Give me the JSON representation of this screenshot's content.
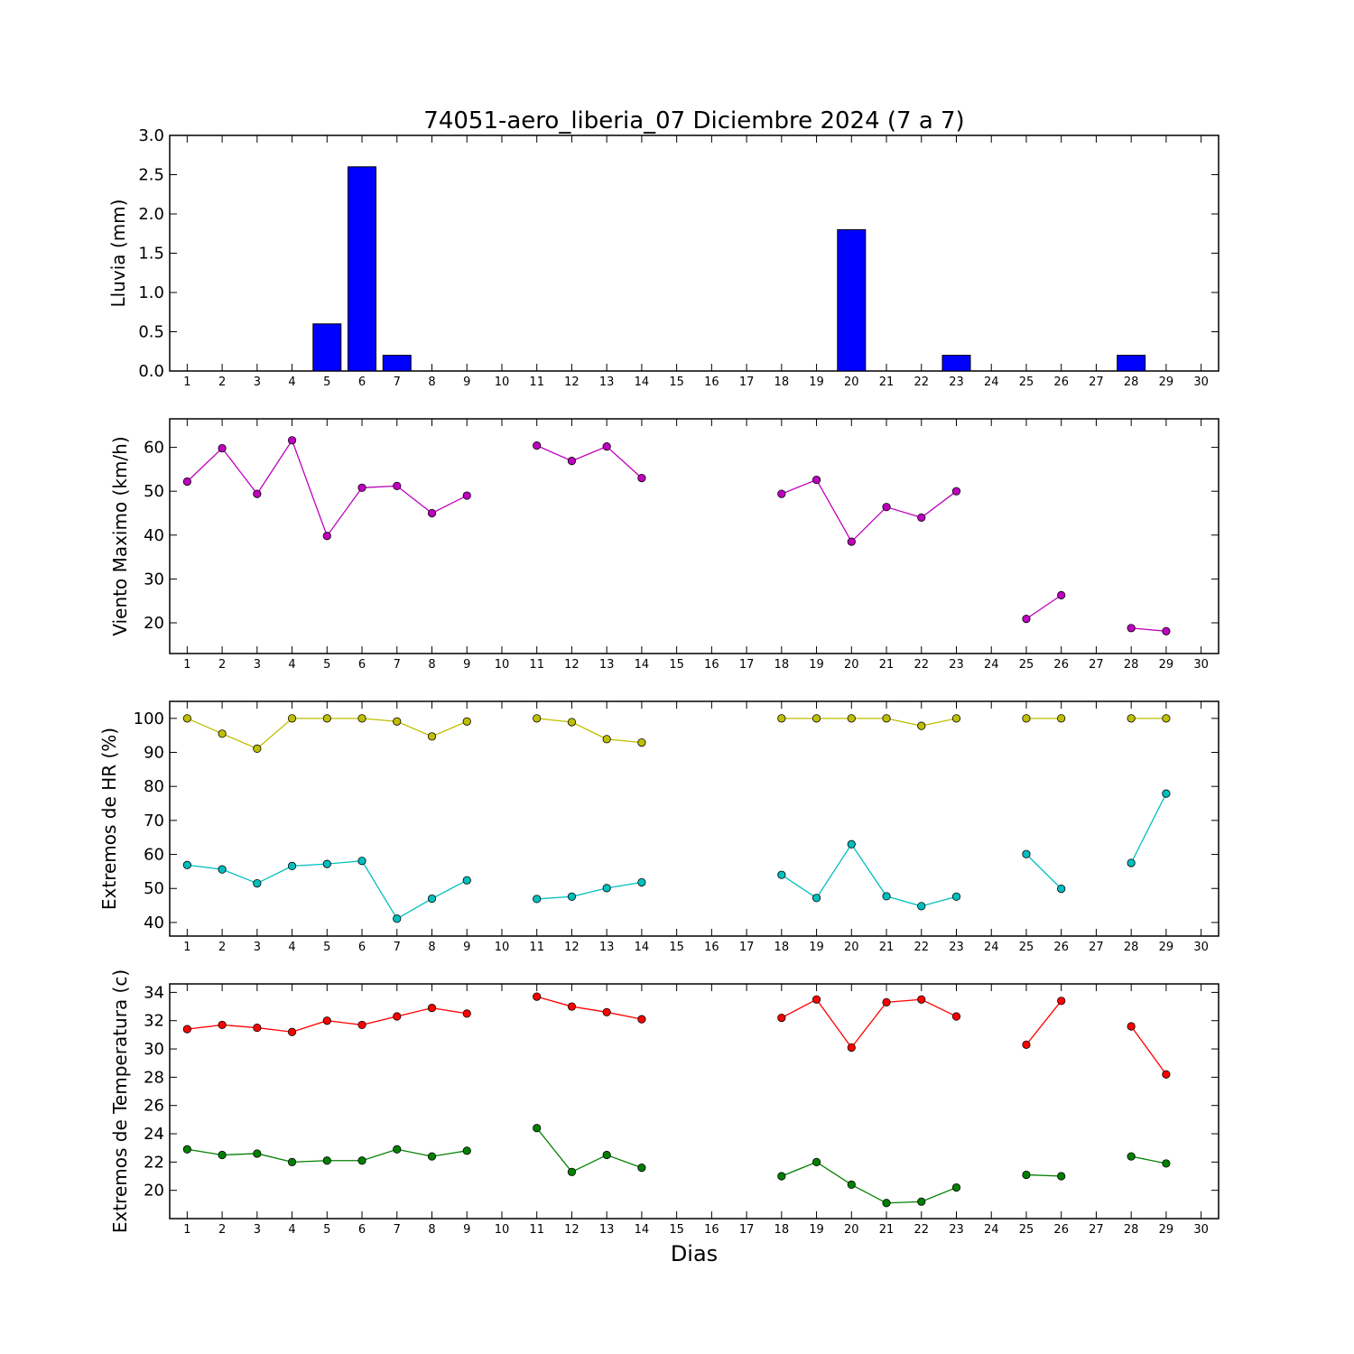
{
  "figure_title": "74051-aero_liberia_07 Diciembre 2024  (7 a 7)",
  "x_axis_label": "Dias",
  "chart_data": [
    {
      "type": "bar",
      "ylabel": "Lluvia (mm)",
      "xlabel": "",
      "title": "74051-aero_liberia_07 Diciembre 2024  (7 a 7)",
      "xlim": [
        0.5,
        30.5
      ],
      "ylim": [
        0,
        3.0
      ],
      "xticks": [
        1,
        2,
        3,
        4,
        5,
        6,
        7,
        8,
        9,
        10,
        11,
        12,
        13,
        14,
        15,
        16,
        17,
        18,
        19,
        20,
        21,
        22,
        23,
        24,
        25,
        26,
        27,
        28,
        29,
        30
      ],
      "yticks": [
        0.0,
        0.5,
        1.0,
        1.5,
        2.0,
        2.5,
        3.0
      ],
      "ytick_labels": [
        "0.0",
        "0.5",
        "1.0",
        "1.5",
        "2.0",
        "2.5",
        "3.0"
      ],
      "grid": false,
      "series": [
        {
          "color": "#0000ff",
          "x": [
            1,
            2,
            3,
            4,
            5,
            6,
            7,
            8,
            9,
            10,
            11,
            12,
            13,
            14,
            15,
            16,
            17,
            18,
            19,
            20,
            21,
            22,
            23,
            24,
            25,
            26,
            27,
            28,
            29,
            30
          ],
          "y": [
            0,
            0,
            0,
            0,
            0.6,
            2.6,
            0.2,
            0,
            0,
            0,
            0,
            0,
            0,
            0,
            0,
            0,
            0,
            0,
            0,
            1.8,
            0,
            0,
            0.2,
            0,
            0,
            0,
            0,
            0.2,
            0,
            null
          ]
        }
      ]
    },
    {
      "type": "line",
      "ylabel": "Viento Maximo (km/h)",
      "xlabel": "",
      "xlim": [
        0.5,
        30.5
      ],
      "ylim": [
        13,
        66.5
      ],
      "xticks": [
        1,
        2,
        3,
        4,
        5,
        6,
        7,
        8,
        9,
        10,
        11,
        12,
        13,
        14,
        15,
        16,
        17,
        18,
        19,
        20,
        21,
        22,
        23,
        24,
        25,
        26,
        27,
        28,
        29,
        30
      ],
      "yticks": [
        20,
        30,
        40,
        50,
        60
      ],
      "ytick_labels": [
        "20",
        "30",
        "40",
        "50",
        "60"
      ],
      "grid": false,
      "series": [
        {
          "color": "#bf00bf",
          "x": [
            1,
            2,
            3,
            4,
            5,
            6,
            7,
            8,
            9,
            10,
            11,
            12,
            13,
            14,
            15,
            16,
            17,
            18,
            19,
            20,
            21,
            22,
            23,
            24,
            25,
            26,
            27,
            28,
            29
          ],
          "y": [
            52.2,
            59.8,
            49.4,
            61.6,
            39.8,
            50.8,
            51.2,
            45.0,
            49.0,
            null,
            60.4,
            56.9,
            60.2,
            53.0,
            null,
            null,
            null,
            49.4,
            52.6,
            38.5,
            46.4,
            44.0,
            50.0,
            null,
            20.9,
            26.3,
            null,
            18.8,
            18.1
          ]
        }
      ]
    },
    {
      "type": "line",
      "ylabel": "Extremos de HR (%)",
      "xlabel": "",
      "xlim": [
        0.5,
        30.5
      ],
      "ylim": [
        36,
        105
      ],
      "xticks": [
        1,
        2,
        3,
        4,
        5,
        6,
        7,
        8,
        9,
        10,
        11,
        12,
        13,
        14,
        15,
        16,
        17,
        18,
        19,
        20,
        21,
        22,
        23,
        24,
        25,
        26,
        27,
        28,
        29,
        30
      ],
      "yticks": [
        40,
        50,
        60,
        70,
        80,
        90,
        100
      ],
      "ytick_labels": [
        "40",
        "50",
        "60",
        "70",
        "80",
        "90",
        "100"
      ],
      "grid": false,
      "series": [
        {
          "color": "#bfbf00",
          "x": [
            1,
            2,
            3,
            4,
            5,
            6,
            7,
            8,
            9,
            10,
            11,
            12,
            13,
            14,
            15,
            16,
            17,
            18,
            19,
            20,
            21,
            22,
            23,
            24,
            25,
            26,
            27,
            28,
            29
          ],
          "y": [
            100,
            95.5,
            91.1,
            100,
            100,
            100,
            99.1,
            94.7,
            99.1,
            null,
            100,
            98.9,
            93.9,
            92.9,
            null,
            null,
            null,
            100,
            100,
            100,
            100,
            97.8,
            100,
            null,
            100,
            100,
            null,
            100,
            100
          ]
        },
        {
          "color": "#00bfbf",
          "x": [
            1,
            2,
            3,
            4,
            5,
            6,
            7,
            8,
            9,
            10,
            11,
            12,
            13,
            14,
            15,
            16,
            17,
            18,
            19,
            20,
            21,
            22,
            23,
            24,
            25,
            26,
            27,
            28,
            29
          ],
          "y": [
            56.9,
            55.6,
            51.5,
            56.6,
            57.2,
            58.1,
            41.1,
            47.0,
            52.4,
            null,
            46.9,
            47.6,
            50.1,
            51.8,
            null,
            null,
            null,
            54.0,
            47.2,
            63.0,
            47.7,
            44.8,
            47.6,
            null,
            60.1,
            49.9,
            null,
            57.5,
            77.9
          ]
        }
      ]
    },
    {
      "type": "line",
      "ylabel": "Extremos de Temperatura (c)",
      "xlabel": "Dias",
      "xlim": [
        0.5,
        30.5
      ],
      "ylim": [
        18.0,
        34.6
      ],
      "xticks": [
        1,
        2,
        3,
        4,
        5,
        6,
        7,
        8,
        9,
        10,
        11,
        12,
        13,
        14,
        15,
        16,
        17,
        18,
        19,
        20,
        21,
        22,
        23,
        24,
        25,
        26,
        27,
        28,
        29,
        30
      ],
      "yticks": [
        20,
        22,
        24,
        26,
        28,
        30,
        32,
        34
      ],
      "ytick_labels": [
        "20",
        "22",
        "24",
        "26",
        "28",
        "30",
        "32",
        "34"
      ],
      "grid": false,
      "series": [
        {
          "color": "#ff0000",
          "x": [
            1,
            2,
            3,
            4,
            5,
            6,
            7,
            8,
            9,
            10,
            11,
            12,
            13,
            14,
            15,
            16,
            17,
            18,
            19,
            20,
            21,
            22,
            23,
            24,
            25,
            26,
            27,
            28,
            29
          ],
          "y": [
            31.4,
            31.7,
            31.5,
            31.2,
            32.0,
            31.7,
            32.3,
            32.9,
            32.5,
            null,
            33.7,
            33.0,
            32.6,
            32.1,
            null,
            null,
            null,
            32.2,
            33.5,
            30.1,
            33.3,
            33.5,
            32.3,
            null,
            30.3,
            33.4,
            null,
            31.6,
            28.2
          ]
        },
        {
          "color": "#008000",
          "x": [
            1,
            2,
            3,
            4,
            5,
            6,
            7,
            8,
            9,
            10,
            11,
            12,
            13,
            14,
            15,
            16,
            17,
            18,
            19,
            20,
            21,
            22,
            23,
            24,
            25,
            26,
            27,
            28,
            29
          ],
          "y": [
            22.9,
            22.5,
            22.6,
            22.0,
            22.1,
            22.1,
            22.9,
            22.4,
            22.8,
            null,
            24.4,
            21.3,
            22.5,
            21.6,
            null,
            null,
            null,
            21.0,
            22.0,
            20.4,
            19.1,
            19.2,
            20.2,
            null,
            21.1,
            21.0,
            null,
            22.4,
            21.9
          ]
        }
      ]
    }
  ]
}
